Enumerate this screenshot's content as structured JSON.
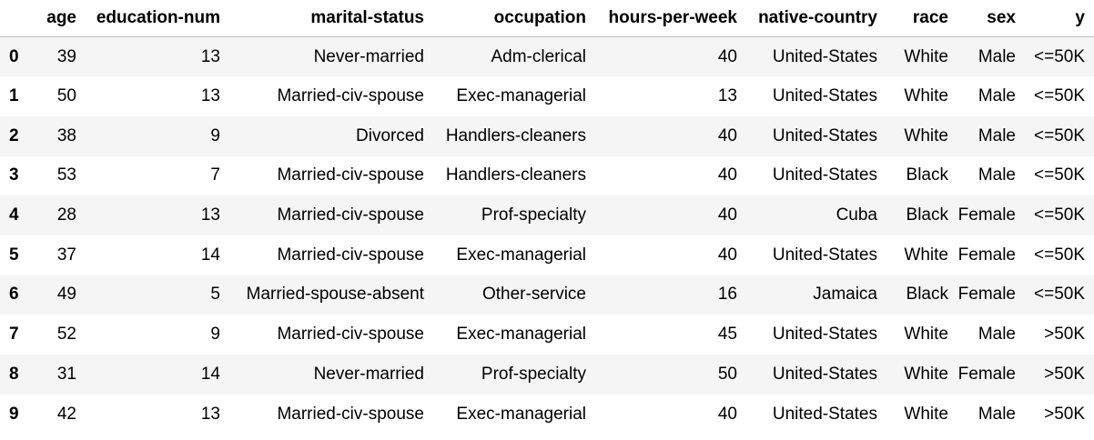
{
  "columns": [
    "age",
    "education-num",
    "marital-status",
    "occupation",
    "hours-per-week",
    "native-country",
    "race",
    "sex",
    "y"
  ],
  "rows": [
    {
      "index": "0",
      "cells": [
        "39",
        "13",
        "Never-married",
        "Adm-clerical",
        "40",
        "United-States",
        "White",
        "Male",
        "<=50K"
      ]
    },
    {
      "index": "1",
      "cells": [
        "50",
        "13",
        "Married-civ-spouse",
        "Exec-managerial",
        "13",
        "United-States",
        "White",
        "Male",
        "<=50K"
      ]
    },
    {
      "index": "2",
      "cells": [
        "38",
        "9",
        "Divorced",
        "Handlers-cleaners",
        "40",
        "United-States",
        "White",
        "Male",
        "<=50K"
      ]
    },
    {
      "index": "3",
      "cells": [
        "53",
        "7",
        "Married-civ-spouse",
        "Handlers-cleaners",
        "40",
        "United-States",
        "Black",
        "Male",
        "<=50K"
      ]
    },
    {
      "index": "4",
      "cells": [
        "28",
        "13",
        "Married-civ-spouse",
        "Prof-specialty",
        "40",
        "Cuba",
        "Black",
        "Female",
        "<=50K"
      ]
    },
    {
      "index": "5",
      "cells": [
        "37",
        "14",
        "Married-civ-spouse",
        "Exec-managerial",
        "40",
        "United-States",
        "White",
        "Female",
        "<=50K"
      ]
    },
    {
      "index": "6",
      "cells": [
        "49",
        "5",
        "Married-spouse-absent",
        "Other-service",
        "16",
        "Jamaica",
        "Black",
        "Female",
        "<=50K"
      ]
    },
    {
      "index": "7",
      "cells": [
        "52",
        "9",
        "Married-civ-spouse",
        "Exec-managerial",
        "45",
        "United-States",
        "White",
        "Male",
        ">50K"
      ]
    },
    {
      "index": "8",
      "cells": [
        "31",
        "14",
        "Never-married",
        "Prof-specialty",
        "50",
        "United-States",
        "White",
        "Female",
        ">50K"
      ]
    },
    {
      "index": "9",
      "cells": [
        "42",
        "13",
        "Married-civ-spouse",
        "Exec-managerial",
        "40",
        "United-States",
        "White",
        "Male",
        ">50K"
      ]
    }
  ],
  "colors": {
    "stripe": "#f5f5f5",
    "header_rule": "#bdbdbd",
    "text": "#000000"
  }
}
